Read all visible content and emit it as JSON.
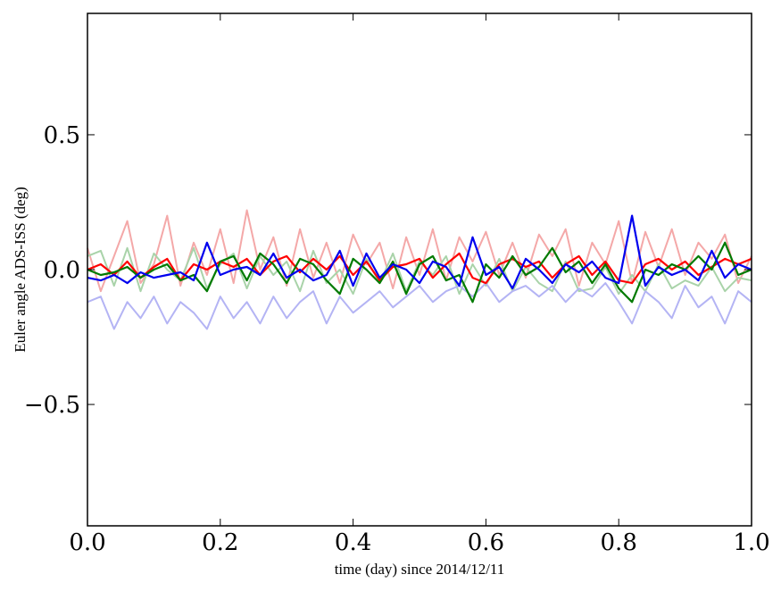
{
  "chart_data": {
    "type": "line",
    "title": "",
    "xlabel": "time (day) since 2014/12/11",
    "ylabel": "Euler angle ADS-ISS (deg)",
    "xlim": [
      0.0,
      1.0
    ],
    "ylim": [
      -0.95,
      0.95
    ],
    "xticks": [
      0.0,
      0.2,
      0.4,
      0.6,
      0.8,
      1.0
    ],
    "xtick_labels": [
      "0.0",
      "0.2",
      "0.4",
      "0.6",
      "0.8",
      "1.0"
    ],
    "yticks": [
      -0.5,
      0.0,
      0.5
    ],
    "ytick_labels": [
      "−0.5",
      "0.0",
      "0.5"
    ],
    "grid": false,
    "legend": "none",
    "x": [
      0.0,
      0.02,
      0.04,
      0.06,
      0.08,
      0.1,
      0.12,
      0.14,
      0.16,
      0.18,
      0.2,
      0.22,
      0.24,
      0.26,
      0.28,
      0.3,
      0.32,
      0.34,
      0.36,
      0.38,
      0.4,
      0.42,
      0.44,
      0.46,
      0.48,
      0.5,
      0.52,
      0.54,
      0.56,
      0.58,
      0.6,
      0.62,
      0.64,
      0.66,
      0.68,
      0.7,
      0.72,
      0.74,
      0.76,
      0.78,
      0.8,
      0.82,
      0.84,
      0.86,
      0.88,
      0.9,
      0.92,
      0.94,
      0.96,
      0.98,
      1.0
    ],
    "series": [
      {
        "color": "#f4a8a8",
        "values": [
          0.08,
          -0.08,
          0.05,
          0.18,
          -0.05,
          0.02,
          0.2,
          -0.06,
          0.1,
          -0.02,
          0.15,
          -0.05,
          0.22,
          0.0,
          0.12,
          -0.06,
          0.15,
          -0.03,
          0.1,
          -0.05,
          0.13,
          0.02,
          0.1,
          -0.07,
          0.12,
          -0.02,
          0.15,
          -0.04,
          0.12,
          0.03,
          0.14,
          -0.02,
          0.1,
          -0.03,
          0.13,
          0.05,
          0.15,
          -0.06,
          0.1,
          0.02,
          0.18,
          -0.05,
          0.14,
          0.01,
          0.15,
          -0.02,
          0.1,
          0.04,
          0.13,
          -0.05,
          0.05
        ]
      },
      {
        "color": "#a9d3a9",
        "values": [
          0.05,
          0.07,
          -0.06,
          0.08,
          -0.08,
          0.06,
          0.0,
          -0.04,
          0.08,
          -0.07,
          0.02,
          0.06,
          -0.07,
          0.05,
          -0.02,
          0.03,
          -0.08,
          0.07,
          -0.05,
          0.0,
          -0.09,
          0.04,
          -0.05,
          0.06,
          -0.08,
          0.03,
          -0.02,
          0.05,
          -0.09,
          0.02,
          -0.06,
          0.04,
          -0.08,
          0.01,
          -0.05,
          -0.08,
          0.03,
          -0.08,
          -0.07,
          0.01,
          -0.09,
          -0.02,
          -0.08,
          0.02,
          -0.07,
          -0.04,
          -0.06,
          0.01,
          -0.08,
          -0.03,
          -0.04
        ]
      },
      {
        "color": "#b4b4f4",
        "values": [
          -0.12,
          -0.1,
          -0.22,
          -0.12,
          -0.18,
          -0.1,
          -0.2,
          -0.12,
          -0.16,
          -0.22,
          -0.1,
          -0.18,
          -0.12,
          -0.2,
          -0.1,
          -0.18,
          -0.12,
          -0.08,
          -0.2,
          -0.1,
          -0.16,
          -0.12,
          -0.08,
          -0.14,
          -0.1,
          -0.06,
          -0.12,
          -0.08,
          -0.06,
          -0.1,
          -0.05,
          -0.12,
          -0.08,
          -0.06,
          -0.1,
          -0.06,
          -0.12,
          -0.07,
          -0.1,
          -0.05,
          -0.12,
          -0.2,
          -0.08,
          -0.12,
          -0.18,
          -0.06,
          -0.14,
          -0.1,
          -0.2,
          -0.08,
          -0.12
        ]
      },
      {
        "color": "#ff0000",
        "values": [
          0.0,
          0.02,
          -0.02,
          0.03,
          -0.03,
          0.01,
          0.04,
          -0.04,
          0.02,
          0.0,
          0.03,
          0.01,
          0.04,
          -0.02,
          0.03,
          0.05,
          -0.01,
          0.04,
          0.0,
          0.05,
          -0.02,
          0.03,
          -0.04,
          0.01,
          0.02,
          0.04,
          -0.03,
          0.02,
          0.06,
          -0.03,
          -0.05,
          0.02,
          0.04,
          0.01,
          0.03,
          -0.03,
          0.02,
          0.05,
          -0.02,
          0.03,
          -0.04,
          -0.05,
          0.02,
          0.04,
          0.0,
          0.03,
          -0.02,
          0.01,
          0.04,
          0.02,
          0.04
        ]
      },
      {
        "color": "#007a00",
        "values": [
          0.0,
          -0.02,
          -0.01,
          0.01,
          -0.03,
          0.0,
          0.02,
          -0.04,
          -0.02,
          -0.08,
          0.03,
          0.05,
          -0.04,
          0.06,
          0.02,
          -0.05,
          0.04,
          0.02,
          -0.04,
          -0.09,
          0.04,
          0.0,
          -0.05,
          0.03,
          -0.09,
          0.02,
          0.05,
          -0.04,
          -0.02,
          -0.12,
          0.02,
          -0.03,
          0.05,
          -0.02,
          0.01,
          0.08,
          -0.01,
          0.03,
          -0.05,
          0.02,
          -0.07,
          -0.12,
          0.0,
          -0.02,
          0.02,
          0.0,
          0.05,
          0.0,
          0.1,
          -0.02,
          0.0
        ]
      },
      {
        "color": "#0000ee",
        "values": [
          -0.03,
          -0.04,
          -0.02,
          -0.05,
          -0.01,
          -0.03,
          -0.02,
          -0.01,
          -0.04,
          0.1,
          -0.02,
          0.0,
          0.01,
          -0.02,
          0.06,
          -0.03,
          0.0,
          -0.04,
          -0.02,
          0.07,
          -0.06,
          0.06,
          -0.03,
          0.02,
          0.0,
          -0.05,
          0.03,
          0.01,
          -0.06,
          0.12,
          -0.02,
          0.01,
          -0.07,
          0.04,
          0.0,
          -0.05,
          0.02,
          -0.01,
          0.03,
          -0.03,
          -0.05,
          0.2,
          -0.06,
          0.01,
          -0.02,
          0.0,
          -0.04,
          0.07,
          -0.03,
          0.02,
          0.0
        ]
      }
    ]
  }
}
